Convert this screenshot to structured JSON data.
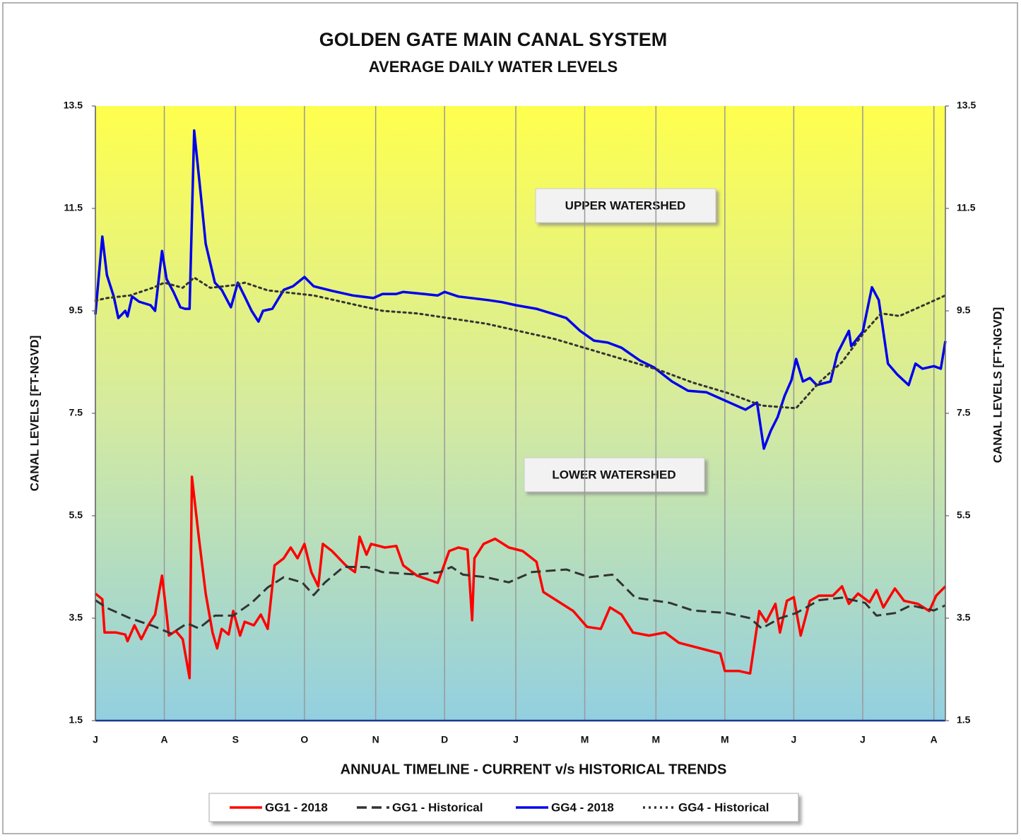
{
  "chart_data": {
    "type": "line",
    "title": "GOLDEN GATE MAIN CANAL SYSTEM",
    "subtitle": "AVERAGE DAILY WATER LEVELS",
    "y_label": "CANAL LEVELS [FT-NGVD]",
    "y2_label": "CANAL LEVELS [FT-NGVD]",
    "x_label": "ANNUAL TIMELINE - CURRENT v/s HISTORICAL TRENDS",
    "annotations": [
      "UPPER WATERSHED",
      "LOWER WATERSHED"
    ],
    "xlim": [
      0,
      370
    ],
    "xticks": [
      {
        "value": 0,
        "label": "J"
      },
      {
        "value": 30,
        "label": "A"
      },
      {
        "value": 61,
        "label": "S"
      },
      {
        "value": 91,
        "label": "O"
      },
      {
        "value": 122,
        "label": "N"
      },
      {
        "value": 152,
        "label": "D"
      },
      {
        "value": 183,
        "label": "J"
      },
      {
        "value": 213,
        "label": "M"
      },
      {
        "value": 244,
        "label": "M"
      },
      {
        "value": 274,
        "label": "M"
      },
      {
        "value": 304,
        "label": "J"
      },
      {
        "value": 334,
        "label": "J"
      },
      {
        "value": 365,
        "label": "A"
      }
    ],
    "ylim": [
      1.5,
      13.5
    ],
    "yticks": [
      1.5,
      3.5,
      5.5,
      7.5,
      9.5,
      11.5,
      13.5
    ],
    "y2lim": [
      1.5,
      13.5
    ],
    "y2ticks": [
      1.5,
      3.5,
      5.5,
      7.5,
      9.5,
      11.5,
      13.5
    ],
    "grid": true,
    "legend": "bottom",
    "series": [
      {
        "name": "GG1 - 2018",
        "color": "#ff0000",
        "dash": "solid",
        "x": [
          0,
          3,
          4,
          9,
          13,
          14,
          17,
          20,
          23,
          26,
          29,
          31,
          32,
          35,
          38,
          41,
          42,
          45,
          48,
          51,
          53,
          55,
          58,
          60,
          63,
          65,
          69,
          72,
          75,
          78,
          82,
          85,
          88,
          91,
          94,
          97,
          99,
          103,
          109,
          113,
          115,
          118,
          120,
          126,
          131,
          134,
          140,
          149,
          154,
          158,
          162,
          164,
          165,
          169,
          174,
          180,
          186,
          192,
          195,
          201,
          208,
          214,
          220,
          224,
          229,
          234,
          241,
          248,
          254,
          260,
          266,
          272,
          274,
          280,
          285,
          289,
          292,
          296,
          298,
          301,
          304,
          307,
          311,
          315,
          321,
          325,
          328,
          332,
          337,
          340,
          343,
          348,
          352,
          358,
          363,
          366,
          370
        ],
        "values": [
          3.98,
          3.87,
          3.22,
          3.22,
          3.18,
          3.05,
          3.36,
          3.09,
          3.36,
          3.57,
          4.33,
          3.57,
          3.16,
          3.25,
          3.09,
          2.33,
          6.26,
          5.09,
          3.98,
          3.22,
          2.91,
          3.29,
          3.18,
          3.64,
          3.16,
          3.43,
          3.36,
          3.57,
          3.29,
          4.53,
          4.67,
          4.88,
          4.67,
          4.95,
          4.4,
          4.12,
          4.95,
          4.81,
          4.53,
          4.4,
          5.09,
          4.74,
          4.95,
          4.88,
          4.91,
          4.53,
          4.33,
          4.19,
          4.81,
          4.88,
          4.84,
          3.46,
          4.67,
          4.95,
          5.05,
          4.88,
          4.81,
          4.6,
          4.01,
          3.84,
          3.64,
          3.33,
          3.29,
          3.71,
          3.57,
          3.22,
          3.16,
          3.22,
          3.02,
          2.95,
          2.88,
          2.81,
          2.47,
          2.47,
          2.42,
          3.64,
          3.43,
          3.78,
          3.22,
          3.84,
          3.91,
          3.16,
          3.84,
          3.94,
          3.94,
          4.12,
          3.78,
          3.98,
          3.81,
          4.05,
          3.71,
          4.08,
          3.84,
          3.78,
          3.64,
          3.94,
          4.12
        ]
      },
      {
        "name": "GG1 - Historical",
        "color": "#333333",
        "dash": "dashed",
        "x": [
          0,
          5,
          15,
          25,
          33,
          40,
          45,
          52,
          60,
          68,
          75,
          82,
          90,
          95,
          100,
          108,
          118,
          125,
          140,
          150,
          155,
          160,
          170,
          180,
          190,
          205,
          215,
          225,
          235,
          250,
          260,
          275,
          285,
          290,
          298,
          305,
          315,
          325,
          335,
          340,
          348,
          355,
          365,
          370
        ],
        "values": [
          3.85,
          3.7,
          3.5,
          3.35,
          3.2,
          3.4,
          3.3,
          3.55,
          3.55,
          3.8,
          4.1,
          4.3,
          4.2,
          3.95,
          4.2,
          4.5,
          4.5,
          4.4,
          4.35,
          4.4,
          4.5,
          4.35,
          4.3,
          4.2,
          4.4,
          4.45,
          4.3,
          4.35,
          3.9,
          3.8,
          3.65,
          3.6,
          3.5,
          3.3,
          3.5,
          3.6,
          3.85,
          3.9,
          3.8,
          3.55,
          3.6,
          3.75,
          3.65,
          3.75
        ]
      },
      {
        "name": "GG4 - 2018",
        "color": "#0000ee",
        "dash": "solid",
        "x": [
          0,
          3,
          5,
          8,
          10,
          13,
          14,
          16,
          19,
          24,
          26,
          29,
          31,
          34,
          37,
          39,
          41,
          43,
          46,
          48,
          52,
          55,
          59,
          62,
          65,
          68,
          71,
          73,
          77,
          82,
          86,
          91,
          95,
          103,
          112,
          121,
          125,
          131,
          134,
          143,
          149,
          152,
          158,
          171,
          177,
          183,
          192,
          200,
          205,
          211,
          217,
          223,
          229,
          237,
          243,
          251,
          258,
          266,
          275,
          283,
          288,
          291,
          294,
          297,
          300,
          303,
          305,
          308,
          311,
          314,
          320,
          323,
          328,
          329,
          334,
          338,
          341,
          345,
          349,
          354,
          357,
          360,
          365,
          368,
          370
        ],
        "values": [
          9.43,
          10.95,
          10.2,
          9.78,
          9.36,
          9.5,
          9.39,
          9.78,
          9.68,
          9.61,
          9.5,
          10.67,
          10.12,
          9.87,
          9.57,
          9.54,
          9.54,
          13.02,
          11.71,
          10.81,
          10.05,
          9.91,
          9.57,
          10.05,
          9.78,
          9.5,
          9.29,
          9.5,
          9.54,
          9.91,
          9.98,
          10.16,
          9.98,
          9.89,
          9.8,
          9.75,
          9.83,
          9.83,
          9.87,
          9.83,
          9.8,
          9.87,
          9.78,
          9.71,
          9.67,
          9.61,
          9.54,
          9.43,
          9.36,
          9.11,
          8.92,
          8.88,
          8.78,
          8.53,
          8.4,
          8.12,
          7.94,
          7.91,
          7.73,
          7.57,
          7.71,
          6.81,
          7.16,
          7.43,
          7.84,
          8.15,
          8.56,
          8.12,
          8.19,
          8.05,
          8.12,
          8.67,
          9.11,
          8.81,
          9.09,
          9.96,
          9.71,
          8.47,
          8.26,
          8.05,
          8.47,
          8.37,
          8.42,
          8.37,
          8.91
        ]
      },
      {
        "name": "GG4 - Historical",
        "color": "#333333",
        "dash": "dotted",
        "x": [
          0,
          5,
          15,
          25,
          30,
          38,
          43,
          50,
          60,
          65,
          75,
          85,
          95,
          105,
          115,
          125,
          140,
          155,
          170,
          185,
          200,
          215,
          230,
          245,
          260,
          275,
          290,
          305,
          315,
          325,
          335,
          342,
          350,
          360,
          370
        ],
        "values": [
          9.7,
          9.75,
          9.8,
          9.95,
          10.05,
          9.95,
          10.15,
          9.95,
          10.0,
          10.05,
          9.9,
          9.85,
          9.8,
          9.7,
          9.6,
          9.5,
          9.45,
          9.35,
          9.25,
          9.1,
          8.95,
          8.75,
          8.55,
          8.35,
          8.1,
          7.9,
          7.65,
          7.6,
          8.1,
          8.5,
          9.1,
          9.45,
          9.4,
          9.6,
          9.8
        ]
      }
    ]
  }
}
